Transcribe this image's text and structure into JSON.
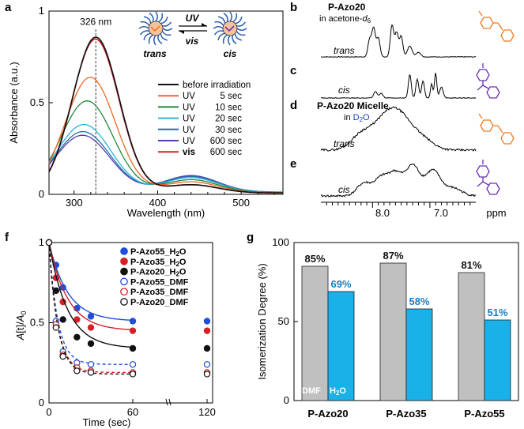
{
  "figure": {
    "panel_labels": [
      "a",
      "b",
      "c",
      "d",
      "e",
      "f",
      "g"
    ],
    "colors": {
      "black": "#111111",
      "orange": "#f26522",
      "green": "#1e8a3c",
      "cyan": "#29b6d8",
      "blue": "#1f6fb4",
      "violet": "#5b3aa8",
      "red": "#d62028",
      "azo_orange": "#f07a23",
      "azo_violet": "#6b2fb3",
      "gray_bar": "#c0c0c0",
      "cyan_bar": "#1ab0e8",
      "value_blue": "#1a7fc0"
    }
  },
  "panel_a": {
    "chart_data": {
      "type": "line",
      "title": "",
      "xlabel": "Wavelength (nm)",
      "ylabel": "Absorbance (a.u.)",
      "xlim": [
        270,
        550
      ],
      "ylim": [
        0,
        1.0
      ],
      "xticks": [
        300,
        400,
        500
      ],
      "yticks": [
        0,
        0.5,
        1
      ],
      "ytick_labels": [
        "0",
        "0.5",
        "1"
      ],
      "peak_label": "326 nm",
      "peak_x": 326,
      "series": [
        {
          "name": "before irradiation",
          "name_prefix": "",
          "name_time": "",
          "color": "#111111",
          "peak": 0.85,
          "min": 0.03,
          "second": 0.045
        },
        {
          "name": "UV 5 sec",
          "name_prefix": "UV",
          "name_time": "5 sec",
          "color": "#f26522",
          "peak": 0.63,
          "min": 0.035,
          "second": 0.06
        },
        {
          "name": "UV 10 sec",
          "name_prefix": "UV",
          "name_time": "10 sec",
          "color": "#1e8a3c",
          "peak": 0.5,
          "min": 0.04,
          "second": 0.07
        },
        {
          "name": "UV 20 sec",
          "name_prefix": "UV",
          "name_time": "20 sec",
          "color": "#29b6d8",
          "peak": 0.37,
          "min": 0.045,
          "second": 0.08
        },
        {
          "name": "UV 30 sec",
          "name_prefix": "UV",
          "name_time": "30 sec",
          "color": "#1f6fb4",
          "peak": 0.33,
          "min": 0.05,
          "second": 0.085
        },
        {
          "name": "UV 600 sec",
          "name_prefix": "UV",
          "name_time": "600 sec",
          "color": "#5b3aa8",
          "peak": 0.31,
          "min": 0.05,
          "second": 0.09
        },
        {
          "name": "vis 600 sec",
          "name_prefix": "vis",
          "name_time": "600 sec",
          "color": "#d62028",
          "peak": 0.84,
          "min": 0.03,
          "second": 0.045
        }
      ]
    },
    "scheme": {
      "uv_label": "UV",
      "vis_label": "vis",
      "trans_label": "trans",
      "cis_label": "cis"
    }
  },
  "panel_nmr": {
    "header_b": "P-Azo20",
    "header_b_sub_prefix": "in acetone-",
    "header_b_sub_d": "d",
    "header_b_sub_six": "6",
    "header_d": "P-Azo20 Micelle",
    "header_d_sub_prefix": "in ",
    "header_d_sub_solvent": "D",
    "header_d_sub_two": "2",
    "header_d_sub_o": "O",
    "trace_labels": [
      "trans",
      "cis",
      "trans",
      "cis"
    ],
    "axis_ticks": [
      "8.0",
      "7.0"
    ],
    "axis_unit": "ppm"
  },
  "panel_f": {
    "chart_data": {
      "type": "scatter",
      "xlabel": "Time (sec)",
      "ylabel_pre": "A",
      "ylabel_mid": "[t]/",
      "ylabel_a0": "A",
      "ylabel_sub": "0",
      "xlim": [
        0,
        120
      ],
      "ylim": [
        0,
        1.0
      ],
      "xticks": [
        "0",
        "60",
        "120"
      ],
      "yticks": [
        "0",
        "0.5",
        "1"
      ],
      "x": [
        0,
        5,
        10,
        20,
        30,
        60,
        120
      ],
      "series": [
        {
          "name": "P-Azo55_H2O",
          "name_main": "P-Azo55_H",
          "name_sub": "2",
          "name_end": "O",
          "filled": true,
          "color": "#1f4fd8",
          "values": [
            1.0,
            0.86,
            0.72,
            0.59,
            0.54,
            0.51,
            0.51
          ]
        },
        {
          "name": "P-Azo35_H2O",
          "name_main": "P-Azo35_H",
          "name_sub": "2",
          "name_end": "O",
          "filled": true,
          "color": "#d62028",
          "values": [
            1.0,
            0.78,
            0.63,
            0.52,
            0.47,
            0.45,
            0.45
          ]
        },
        {
          "name": "P-Azo20_H2O",
          "name_main": "P-Azo20_H",
          "name_sub": "2",
          "name_end": "O",
          "filled": true,
          "color": "#111111",
          "values": [
            1.0,
            0.7,
            0.52,
            0.41,
            0.37,
            0.34,
            0.34
          ]
        },
        {
          "name": "P-Azo55_DMF",
          "name_main": "P-Azo55_DMF",
          "name_sub": "",
          "name_end": "",
          "filled": false,
          "color": "#1f4fd8",
          "values": [
            1.0,
            0.51,
            0.32,
            0.25,
            0.24,
            0.24,
            0.24
          ]
        },
        {
          "name": "P-Azo35_DMF",
          "name_main": "P-Azo35_DMF",
          "name_sub": "",
          "name_end": "",
          "filled": false,
          "color": "#d62028",
          "values": [
            1.0,
            0.49,
            0.3,
            0.22,
            0.2,
            0.19,
            0.19
          ]
        },
        {
          "name": "P-Azo20_DMF",
          "name_main": "P-Azo20_DMF",
          "name_sub": "",
          "name_end": "",
          "filled": false,
          "color": "#111111",
          "values": [
            1.0,
            0.47,
            0.29,
            0.2,
            0.19,
            0.18,
            0.18
          ]
        }
      ]
    }
  },
  "panel_g": {
    "chart_data": {
      "type": "bar",
      "ylabel": "Isomerization Degree (%)",
      "ylim": [
        0,
        100
      ],
      "yticks": [
        "0",
        "50",
        "100"
      ],
      "categories": [
        "P-Azo20",
        "P-Azo35",
        "P-Azo55"
      ],
      "series": [
        {
          "name": "DMF",
          "color": "#c0c0c0",
          "values": [
            85,
            87,
            81
          ],
          "labels": [
            "85%",
            "87%",
            "81%"
          ]
        },
        {
          "name": "H2O",
          "name_main": "H",
          "name_sub": "2",
          "name_end": "O",
          "color": "#1ab0e8",
          "values": [
            69,
            58,
            51
          ],
          "labels": [
            "69%",
            "58%",
            "51%"
          ]
        }
      ]
    }
  }
}
